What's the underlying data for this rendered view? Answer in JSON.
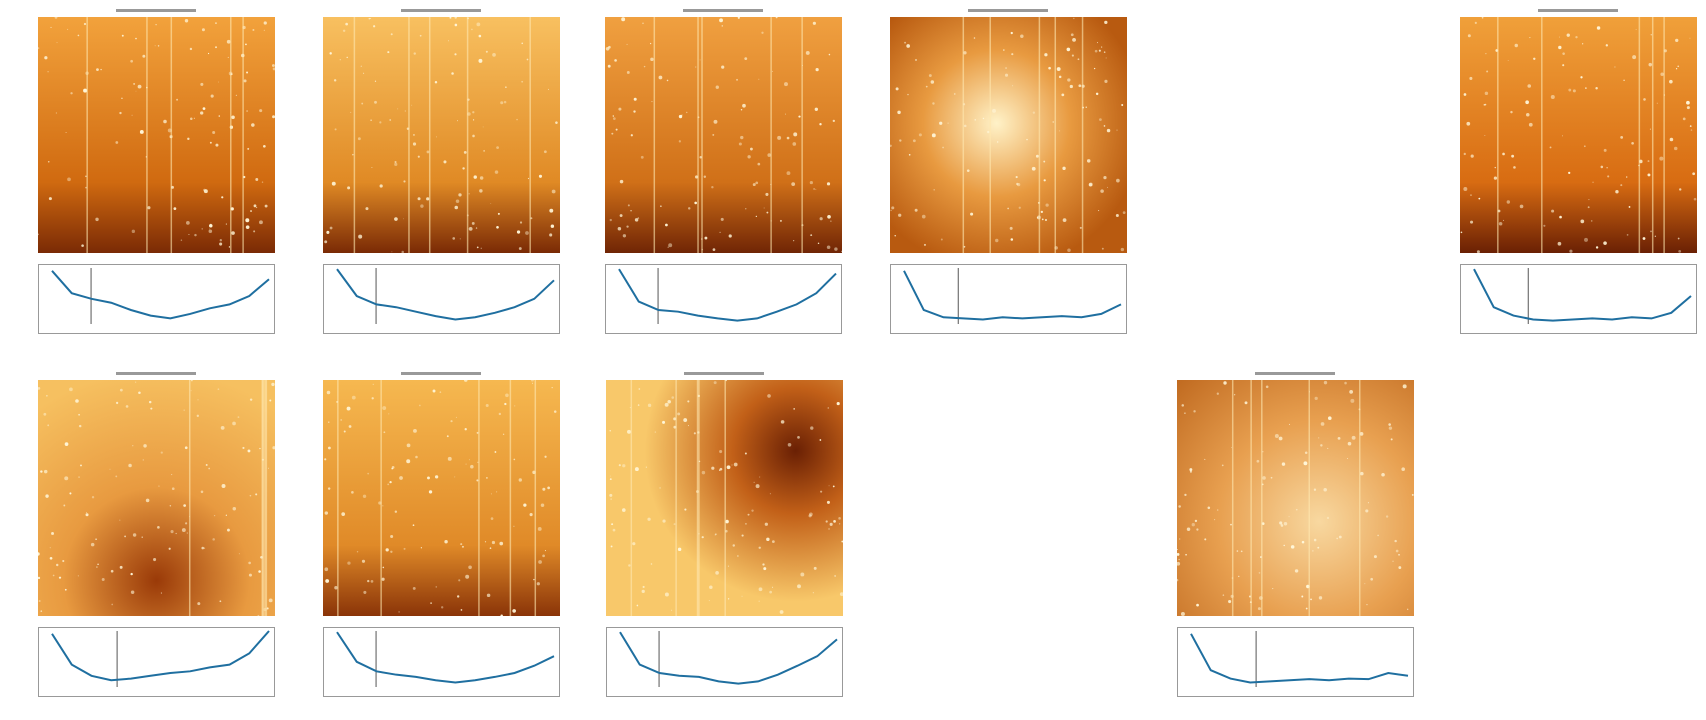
{
  "panels": [
    {
      "curve": [
        95,
        55,
        45,
        38,
        25,
        15,
        10,
        18,
        28,
        35,
        50,
        80
      ],
      "marker": 0.18
    },
    {
      "curve": [
        98,
        50,
        35,
        30,
        22,
        14,
        8,
        12,
        20,
        30,
        45,
        78
      ],
      "marker": 0.18
    },
    {
      "curve": [
        98,
        40,
        25,
        22,
        15,
        10,
        6,
        10,
        22,
        35,
        55,
        90
      ],
      "marker": 0.18
    },
    {
      "curve": [
        95,
        25,
        12,
        10,
        8,
        12,
        10,
        12,
        14,
        12,
        18,
        35
      ],
      "marker": 0.25
    },
    {
      "curve": [
        98,
        30,
        15,
        8,
        6,
        8,
        10,
        8,
        12,
        10,
        20,
        50
      ],
      "marker": 0.25
    },
    {
      "curve": [
        95,
        40,
        20,
        12,
        15,
        20,
        25,
        28,
        35,
        40,
        60,
        100
      ],
      "marker": 0.3
    },
    {
      "curve": [
        98,
        45,
        28,
        22,
        18,
        12,
        8,
        12,
        18,
        25,
        38,
        55
      ],
      "marker": 0.18
    },
    {
      "curve": [
        98,
        40,
        25,
        20,
        18,
        10,
        6,
        10,
        22,
        38,
        55,
        85
      ],
      "marker": 0.18
    },
    {
      "curve": [
        95,
        30,
        15,
        8,
        10,
        12,
        14,
        12,
        15,
        14,
        25,
        20
      ],
      "marker": 0.3
    }
  ]
}
